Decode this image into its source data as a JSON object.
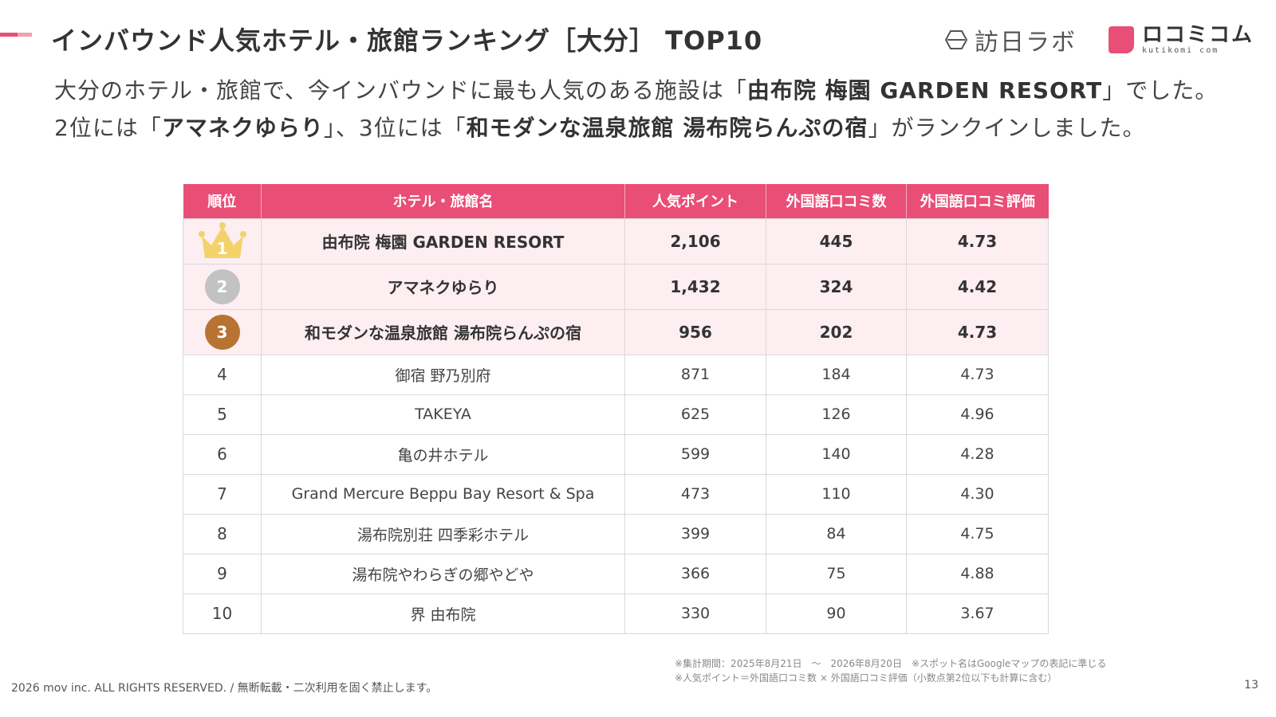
{
  "header": {
    "title": "インバウンド人気ホテル・旅館ランキング［大分］ TOP10",
    "accent_color": "#e94e77"
  },
  "logos": {
    "houjitsu": "訪日ラボ",
    "kuchikomi_main": "ロコミコム",
    "kuchikomi_sub": "kutikomi com"
  },
  "summary": {
    "line1_pre": "大分のホテル・旅館で、今インバウンドに最も人気のある施設は「",
    "line1_bold": "由布院 梅園 GARDEN RESORT",
    "line1_post": "」でした。",
    "line2_pre1": "2位には「",
    "line2_bold1": "アマネクゆらり",
    "line2_mid": "」、3位には「",
    "line2_bold2": "和モダンな温泉旅館 湯布院らんぷの宿",
    "line2_post": "」がランクインしました。"
  },
  "table": {
    "headers": [
      "順位",
      "ホテル・旅館名",
      "人気ポイント",
      "外国語口コミ数",
      "外国語口コミ評価"
    ],
    "rows": [
      {
        "rank": "1",
        "name": "由布院 梅園 GARDEN RESORT",
        "points": "2,106",
        "reviews": "445",
        "rating": "4.73"
      },
      {
        "rank": "2",
        "name": "アマネクゆらり",
        "points": "1,432",
        "reviews": "324",
        "rating": "4.42"
      },
      {
        "rank": "3",
        "name": "和モダンな温泉旅館 湯布院らんぷの宿",
        "points": "956",
        "reviews": "202",
        "rating": "4.73"
      },
      {
        "rank": "4",
        "name": "御宿 野乃別府",
        "points": "871",
        "reviews": "184",
        "rating": "4.73"
      },
      {
        "rank": "5",
        "name": "TAKEYA",
        "points": "625",
        "reviews": "126",
        "rating": "4.96"
      },
      {
        "rank": "6",
        "name": "亀の井ホテル",
        "points": "599",
        "reviews": "140",
        "rating": "4.28"
      },
      {
        "rank": "7",
        "name": "Grand Mercure Beppu Bay Resort & Spa",
        "points": "473",
        "reviews": "110",
        "rating": "4.30"
      },
      {
        "rank": "8",
        "name": "湯布院別荘 四季彩ホテル",
        "points": "399",
        "reviews": "84",
        "rating": "4.75"
      },
      {
        "rank": "9",
        "name": "湯布院やわらぎの郷やどや",
        "points": "366",
        "reviews": "75",
        "rating": "4.88"
      },
      {
        "rank": "10",
        "name": "界 由布院",
        "points": "330",
        "reviews": "90",
        "rating": "3.67"
      }
    ]
  },
  "notes": {
    "line1": "※集計期間：2025年8月21日　〜　2026年8月20日　※スポット名はGoogleマップの表記に準じる",
    "line2": "※人気ポイント＝外国語口コミ数 × 外国語口コミ評価（小数点第2位以下も計算に含む）"
  },
  "footer": {
    "copyright": "2026 mov inc. ALL RIGHTS RESERVED. / 無断転載・二次利用を固く禁止します。",
    "page_number": "13"
  }
}
